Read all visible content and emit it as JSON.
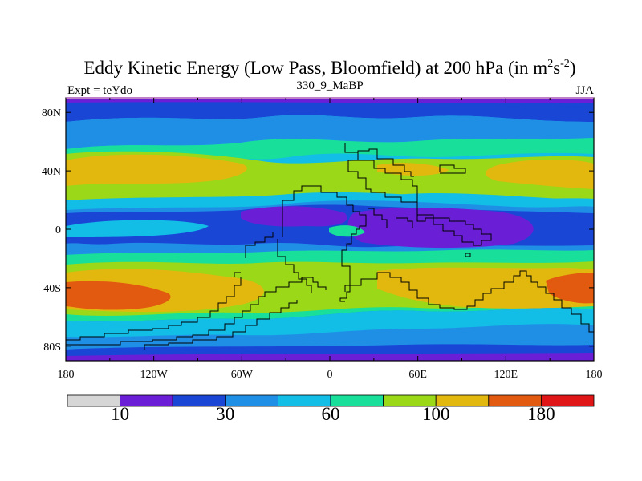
{
  "title": {
    "main": "Eddy Kinetic Energy (Low Pass, Bloomfield) at 200 hPa (in m",
    "sup1": "2",
    "mid": "s",
    "sup2": "-2",
    "close": ")"
  },
  "left_label": "Expt = teYdo",
  "center_label": "330_9_MaBP",
  "right_label": "JJA",
  "axes": {
    "lon_ticks": [
      "180",
      "120W",
      "60W",
      "0",
      "60E",
      "120E",
      "180"
    ],
    "lat_ticks": [
      "80N",
      "40N",
      "0",
      "40S",
      "80S"
    ]
  },
  "colorbar": {
    "colors": [
      "#d6d6d6",
      "#6a1fd6",
      "#1a46d6",
      "#1f8fe6",
      "#12bde6",
      "#18df9a",
      "#9ad818",
      "#e2b80e",
      "#e25a10",
      "#e01616"
    ],
    "labels": [
      "10",
      "30",
      "60",
      "100",
      "180"
    ]
  },
  "field_colors": {
    "c1": "#6a1fd6",
    "c2": "#1a46d6",
    "c3": "#1f8fe6",
    "c4": "#12bde6",
    "c5": "#18df9a",
    "c6": "#9ad818",
    "c7": "#e2b80e",
    "c8": "#e25a10"
  }
}
